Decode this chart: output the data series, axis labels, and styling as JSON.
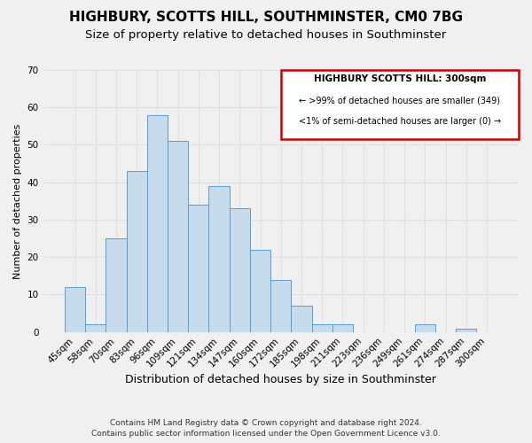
{
  "title": "HIGHBURY, SCOTTS HILL, SOUTHMINSTER, CM0 7BG",
  "subtitle": "Size of property relative to detached houses in Southminster",
  "xlabel": "Distribution of detached houses by size in Southminster",
  "ylabel": "Number of detached properties",
  "bar_labels": [
    "45sqm",
    "58sqm",
    "70sqm",
    "83sqm",
    "96sqm",
    "109sqm",
    "121sqm",
    "134sqm",
    "147sqm",
    "160sqm",
    "172sqm",
    "185sqm",
    "198sqm",
    "211sqm",
    "223sqm",
    "236sqm",
    "249sqm",
    "261sqm",
    "274sqm",
    "287sqm",
    "300sqm"
  ],
  "bar_values": [
    12,
    2,
    25,
    43,
    58,
    51,
    34,
    39,
    33,
    22,
    14,
    7,
    2,
    2,
    0,
    0,
    0,
    2,
    0,
    1,
    0
  ],
  "bar_color": "#c6dcec",
  "bar_edge_color": "#5b9bd5",
  "ylim": [
    0,
    70
  ],
  "yticks": [
    0,
    10,
    20,
    30,
    40,
    50,
    60,
    70
  ],
  "grid_color": "#e0e0e0",
  "bg_color": "#f0f0f0",
  "legend_title": "HIGHBURY SCOTTS HILL: 300sqm",
  "legend_line1": "← >99% of detached houses are smaller (349)",
  "legend_line2": "<1% of semi-detached houses are larger (0) →",
  "legend_box_edge": "#cc0000",
  "footnote1": "Contains HM Land Registry data © Crown copyright and database right 2024.",
  "footnote2": "Contains public sector information licensed under the Open Government Licence v3.0.",
  "title_fontsize": 11,
  "subtitle_fontsize": 9.5,
  "xlabel_fontsize": 9,
  "ylabel_fontsize": 8,
  "tick_fontsize": 7.5
}
